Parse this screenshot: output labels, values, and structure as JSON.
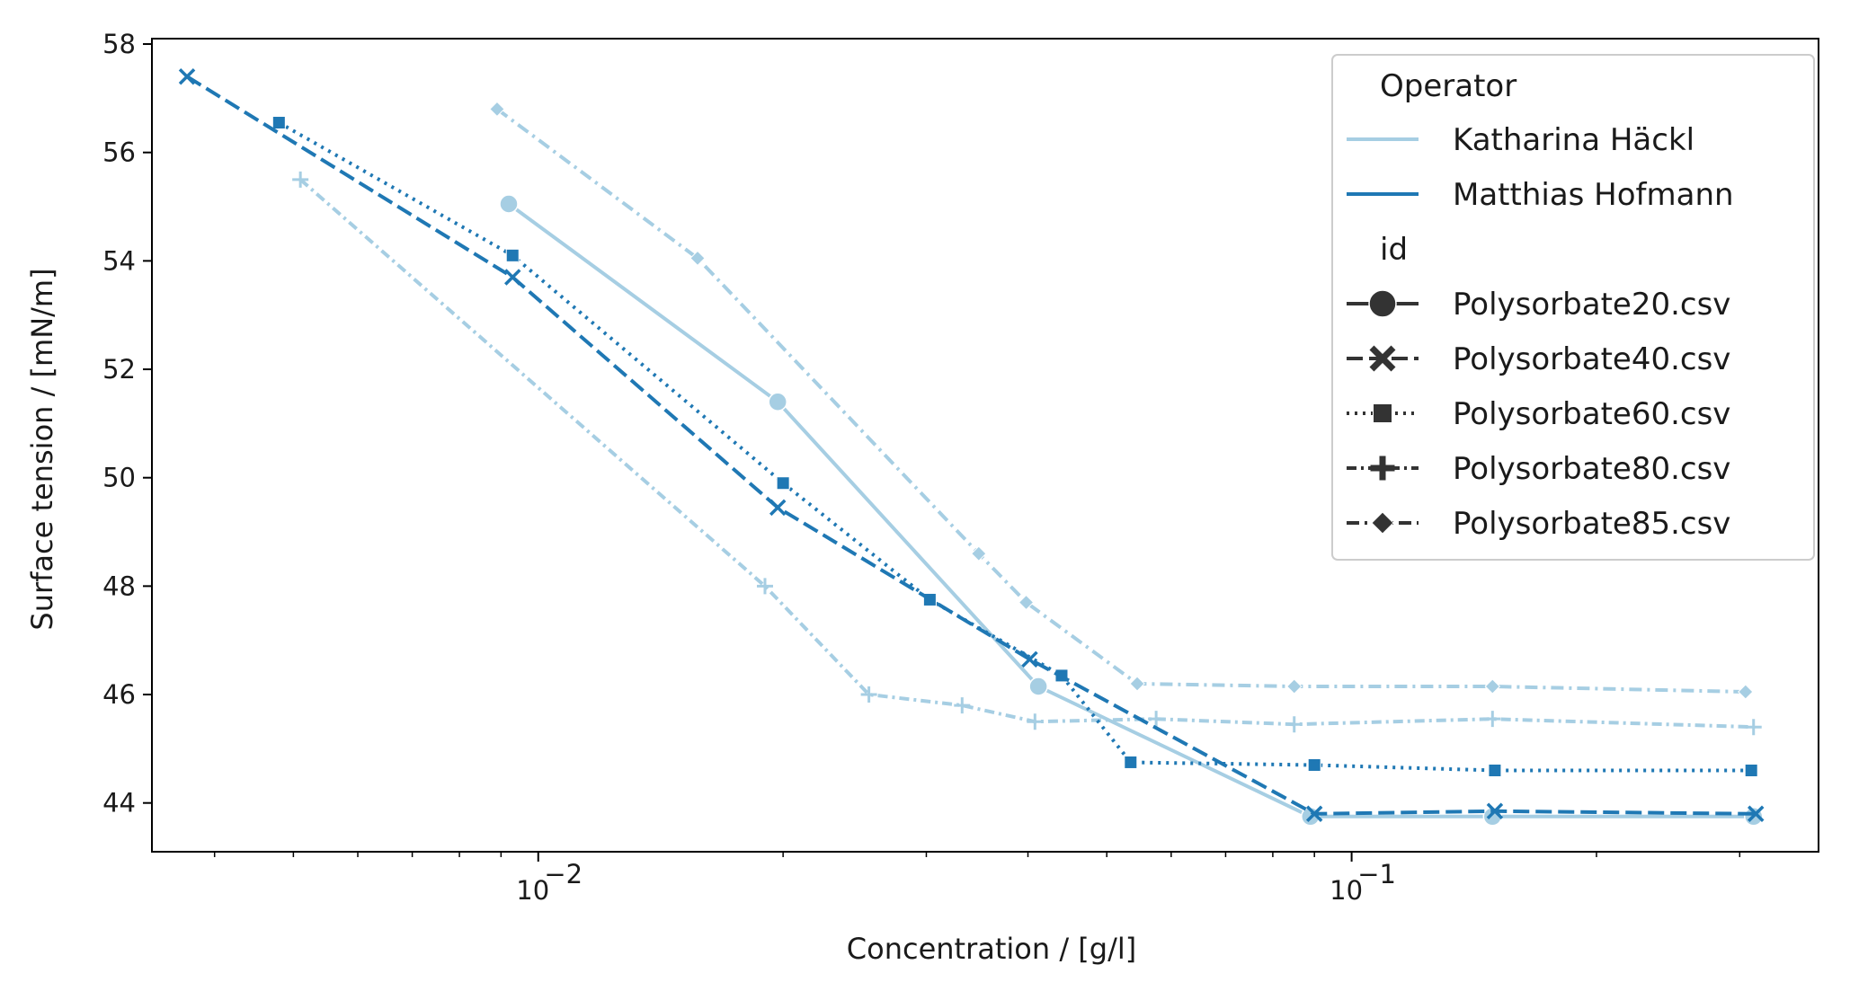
{
  "chart_data": {
    "type": "line",
    "title": "",
    "xlabel": "Concentration / [g/l]",
    "ylabel": "Surface tension / [mN/m]",
    "xscale": "log",
    "xlim": [
      0.00335,
      0.375
    ],
    "ylim": [
      43.1,
      58.1
    ],
    "yticks": [
      44,
      46,
      48,
      50,
      52,
      54,
      56,
      58
    ],
    "xticks_major": [
      {
        "value": 0.01,
        "base": "10",
        "exp": "−2"
      },
      {
        "value": 0.1,
        "base": "10",
        "exp": "−1"
      }
    ],
    "grid": false,
    "legend": {
      "position": "top-right",
      "hue_title": "Operator",
      "style_title": "id",
      "operators": [
        "Katharina Häckl",
        "Matthias Hofmann"
      ],
      "ids": [
        "Polysorbate20.csv",
        "Polysorbate40.csv",
        "Polysorbate60.csv",
        "Polysorbate80.csv",
        "Polysorbate85.csv"
      ]
    },
    "colors": {
      "Katharina Häckl": "#a6cee3",
      "Matthias Hofmann": "#1f78b4",
      "legend_marker": "#333333"
    },
    "series": [
      {
        "operator": "Katharina Häckl",
        "id": "Polysorbate20.csv",
        "x": [
          0.0092,
          0.0197,
          0.0412,
          0.089,
          0.149,
          0.312
        ],
        "y": [
          55.05,
          51.4,
          46.15,
          43.75,
          43.75,
          43.75
        ]
      },
      {
        "operator": "Katharina Häckl",
        "id": "Polysorbate80.csv",
        "x": [
          0.0051,
          0.019,
          0.0255,
          0.0332,
          0.0408,
          0.0575,
          0.085,
          0.149,
          0.312
        ],
        "y": [
          55.5,
          48.0,
          46.0,
          45.8,
          45.5,
          45.55,
          45.45,
          45.55,
          45.4
        ]
      },
      {
        "operator": "Katharina Häckl",
        "id": "Polysorbate85.csv",
        "x": [
          0.0089,
          0.0157,
          0.0348,
          0.0398,
          0.0545,
          0.085,
          0.149,
          0.305
        ],
        "y": [
          56.8,
          54.05,
          48.6,
          47.7,
          46.2,
          46.15,
          46.15,
          46.05
        ]
      },
      {
        "operator": "Matthias Hofmann",
        "id": "Polysorbate40.csv",
        "x": [
          0.0037,
          0.0093,
          0.0197,
          0.0402,
          0.09,
          0.15,
          0.314
        ],
        "y": [
          57.4,
          53.7,
          49.45,
          46.65,
          43.8,
          43.85,
          43.8
        ]
      },
      {
        "operator": "Matthias Hofmann",
        "id": "Polysorbate60.csv",
        "x": [
          0.0048,
          0.0093,
          0.02,
          0.0303,
          0.044,
          0.0535,
          0.09,
          0.15,
          0.31
        ],
        "y": [
          56.55,
          54.1,
          49.9,
          47.75,
          46.35,
          44.75,
          44.7,
          44.6,
          44.6
        ]
      }
    ]
  }
}
